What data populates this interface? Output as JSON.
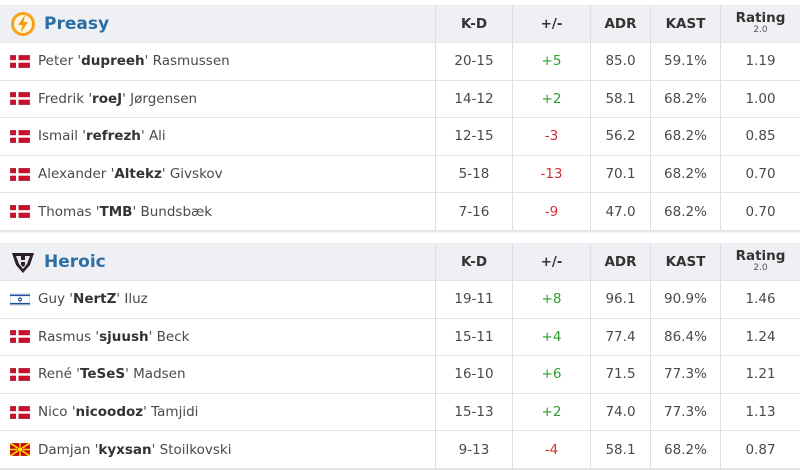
{
  "teams": [
    {
      "name": "Preasy",
      "columns": [
        "K-D",
        "+/-",
        "ADR",
        "KAST",
        "Rating"
      ],
      "rating_version": "2.0",
      "players": [
        {
          "name_parts": [
            "Peter '",
            "dupreeh",
            "' Rasmussen"
          ],
          "kd": "20-15",
          "diff": "+5",
          "adr": "85.0",
          "kast": "59.1%",
          "rating": "1.19"
        },
        {
          "name_parts": [
            "Fredrik '",
            "roeJ",
            "' Jørgensen"
          ],
          "kd": "14-12",
          "diff": "+2",
          "adr": "58.1",
          "kast": "68.2%",
          "rating": "1.00"
        },
        {
          "name_parts": [
            "Ismail '",
            "refrezh",
            "' Ali"
          ],
          "kd": "12-15",
          "diff": "-3",
          "adr": "56.2",
          "kast": "68.2%",
          "rating": "0.85"
        },
        {
          "name_parts": [
            "Alexander '",
            "Altekz",
            "' Givskov"
          ],
          "kd": "5-18",
          "diff": "-13",
          "adr": "70.1",
          "kast": "68.2%",
          "rating": "0.70"
        },
        {
          "name_parts": [
            "Thomas '",
            "TMB",
            "' Bundsbæk"
          ],
          "kd": "7-16",
          "diff": "-9",
          "adr": "47.0",
          "kast": "68.2%",
          "rating": "0.70"
        }
      ]
    },
    {
      "name": "Heroic",
      "columns": [
        "K-D",
        "+/-",
        "ADR",
        "KAST",
        "Rating"
      ],
      "rating_version": "2.0",
      "players": [
        {
          "name_parts": [
            "Guy '",
            "NertZ",
            "' Iluz"
          ],
          "kd": "19-11",
          "diff": "+8",
          "adr": "96.1",
          "kast": "90.9%",
          "rating": "1.46"
        },
        {
          "name_parts": [
            "Rasmus '",
            "sjuush",
            "' Beck"
          ],
          "kd": "15-11",
          "diff": "+4",
          "adr": "77.4",
          "kast": "86.4%",
          "rating": "1.24"
        },
        {
          "name_parts": [
            "René '",
            "TeSeS",
            "' Madsen"
          ],
          "kd": "16-10",
          "diff": "+6",
          "adr": "71.5",
          "kast": "77.3%",
          "rating": "1.21"
        },
        {
          "name_parts": [
            "Nico '",
            "nicoodoz",
            "' Tamjidi"
          ],
          "kd": "15-13",
          "diff": "+2",
          "adr": "74.0",
          "kast": "77.3%",
          "rating": "1.13"
        },
        {
          "name_parts": [
            "Damjan '",
            "kyxsan",
            "' Stoilkovski"
          ],
          "kd": "9-13",
          "diff": "-4",
          "adr": "58.1",
          "kast": "68.2%",
          "rating": "0.87"
        }
      ]
    }
  ]
}
